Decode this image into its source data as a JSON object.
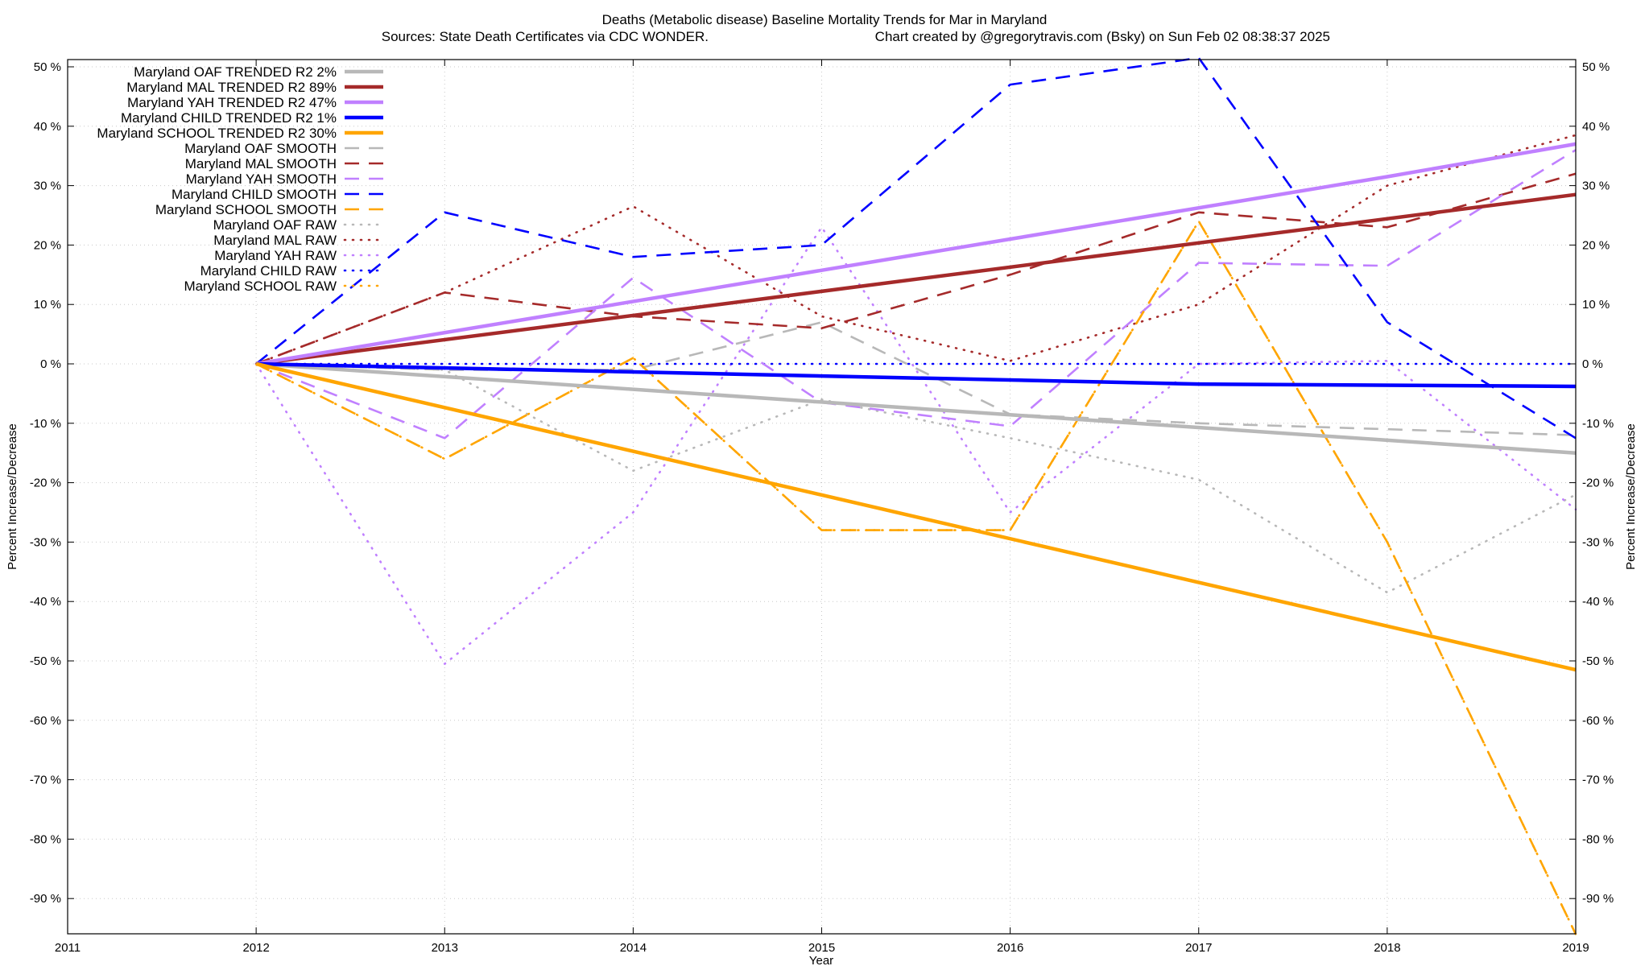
{
  "chart_data": {
    "type": "line",
    "title_line1": "Deaths (Metabolic disease)  Baseline Mortality Trends for Mar in Maryland",
    "title_line2_left": "Sources: State Death Certificates via CDC WONDER.",
    "title_line2_right": "Chart created by @gregorytravis.com (Bsky) on Sun Feb 02 08:38:37 2025",
    "xlabel": "Year",
    "ylabel_left": "Percent Increase/Decrease",
    "ylabel_right": "Percent Increase/Decrease",
    "xlim": [
      2011,
      2019
    ],
    "ylim": [
      -96,
      52
    ],
    "x_ticks": [
      "2011",
      "2012",
      "2013",
      "2014",
      "2015",
      "2016",
      "2017",
      "2018",
      "2019"
    ],
    "y_ticks": [
      "50 %",
      "40 %",
      "30 %",
      "20 %",
      "10 %",
      "0 %",
      "-10 %",
      "-20 %",
      "-30 %",
      "-40 %",
      "-50 %",
      "-60 %",
      "-70 %",
      "-80 %",
      "-90 %"
    ],
    "grid": true,
    "legend_position": "top-left",
    "series": [
      {
        "name": "Maryland OAF TRENDED R2  2%",
        "color": "#b8b8b8",
        "style": "solid",
        "x": [
          2012,
          2019
        ],
        "y": [
          0,
          -15
        ]
      },
      {
        "name": "Maryland MAL TRENDED R2  89%",
        "color": "#a52a2a",
        "style": "solid",
        "x": [
          2012,
          2019
        ],
        "y": [
          0,
          28.5
        ]
      },
      {
        "name": "Maryland YAH TRENDED R2  47%",
        "color": "#c080ff",
        "style": "solid",
        "x": [
          2012,
          2016,
          2018,
          2019
        ],
        "y": [
          0,
          21,
          31.5,
          37
        ]
      },
      {
        "name": "Maryland CHILD TRENDED R2  1%",
        "color": "#0000ff",
        "style": "solid",
        "x": [
          2012,
          2017,
          2019
        ],
        "y": [
          0,
          -3.4,
          -3.8
        ]
      },
      {
        "name": "Maryland SCHOOL TRENDED R2  30%",
        "color": "#ffa500",
        "style": "solid",
        "x": [
          2012,
          2019
        ],
        "y": [
          0,
          -51.5
        ]
      },
      {
        "name": "Maryland OAF SMOOTH",
        "color": "#b8b8b8",
        "style": "dashed",
        "x": [
          2012,
          2013,
          2014,
          2015,
          2016,
          2017,
          2018,
          2019
        ],
        "y": [
          0,
          -1,
          -1,
          7,
          -8.5,
          -10,
          -11,
          -12
        ]
      },
      {
        "name": "Maryland MAL SMOOTH",
        "color": "#a52a2a",
        "style": "dashed",
        "x": [
          2012,
          2013,
          2014,
          2015,
          2016,
          2017,
          2018,
          2019
        ],
        "y": [
          0,
          12,
          8,
          6,
          15,
          25.5,
          23,
          32
        ]
      },
      {
        "name": "Maryland YAH SMOOTH",
        "color": "#c080ff",
        "style": "dashed",
        "x": [
          2012,
          2013,
          2014,
          2015,
          2016,
          2017,
          2018,
          2019
        ],
        "y": [
          0,
          -12.5,
          14.5,
          -6.5,
          -10.5,
          17,
          16.5,
          36
        ]
      },
      {
        "name": "Maryland CHILD SMOOTH",
        "color": "#0000ff",
        "style": "dashed",
        "x": [
          2012,
          2013,
          2014,
          2015,
          2016,
          2017,
          2018,
          2019
        ],
        "y": [
          0,
          25.5,
          18,
          20,
          47,
          51.5,
          7,
          -12.5
        ]
      },
      {
        "name": "Maryland SCHOOL SMOOTH",
        "color": "#ffa500",
        "style": "dashed",
        "x": [
          2012,
          2013,
          2014,
          2015,
          2016,
          2017,
          2018,
          2019
        ],
        "y": [
          0,
          -16,
          1,
          -28,
          -28,
          24,
          -30,
          -96
        ]
      },
      {
        "name": "Maryland OAF RAW",
        "color": "#b8b8b8",
        "style": "dotted",
        "x": [
          2012,
          2013,
          2014,
          2015,
          2016,
          2017,
          2018,
          2019
        ],
        "y": [
          0,
          -1,
          -18,
          -6,
          -12.5,
          -19.5,
          -38.5,
          -22
        ]
      },
      {
        "name": "Maryland MAL RAW",
        "color": "#a52a2a",
        "style": "dotted",
        "x": [
          2012,
          2013,
          2014,
          2015,
          2016,
          2017,
          2018,
          2019
        ],
        "y": [
          0,
          12,
          26.5,
          8,
          0.5,
          10,
          30,
          38.5
        ]
      },
      {
        "name": "Maryland YAH RAW",
        "color": "#c080ff",
        "style": "dotted",
        "x": [
          2012,
          2013,
          2014,
          2015,
          2016,
          2017,
          2018,
          2019
        ],
        "y": [
          0,
          -50.5,
          -25,
          23,
          -25,
          0,
          0.5,
          -24.5
        ]
      },
      {
        "name": "Maryland CHILD RAW",
        "color": "#0000ff",
        "style": "dotted",
        "x": [
          2012,
          2013,
          2014,
          2015,
          2016,
          2017,
          2018,
          2019
        ],
        "y": [
          0,
          0,
          0,
          0,
          0,
          0,
          0,
          0
        ]
      },
      {
        "name": "Maryland SCHOOL RAW",
        "color": "#ffa500",
        "style": "dotted",
        "x": [
          2012,
          2013,
          2014,
          2015,
          2016,
          2017,
          2018,
          2019
        ],
        "y": [
          0,
          -16,
          1,
          -28,
          -28,
          24,
          -30,
          -96
        ]
      }
    ]
  }
}
